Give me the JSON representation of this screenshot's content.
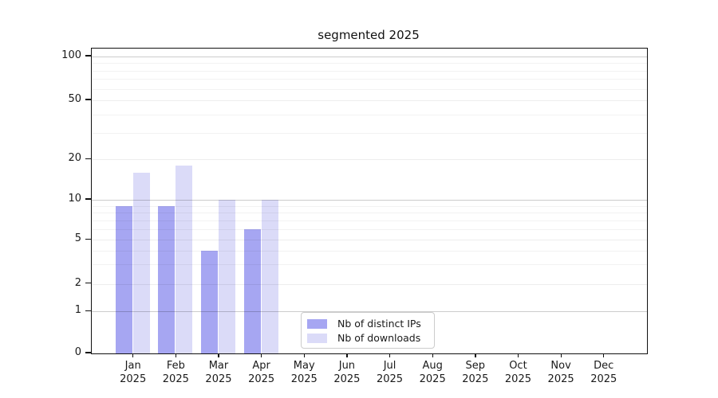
{
  "figure": {
    "title": "segmented 2025"
  },
  "chart_data": {
    "type": "bar",
    "title": "segmented 2025",
    "categories": [
      "Jan 2025",
      "Feb 2025",
      "Mar 2025",
      "Apr 2025",
      "May 2025",
      "Jun 2025",
      "Jul 2025",
      "Aug 2025",
      "Sep 2025",
      "Oct 2025",
      "Nov 2025",
      "Dec 2025"
    ],
    "series": [
      {
        "name": "Nb of distinct IPs",
        "color": "#a6a6f2",
        "values": [
          9,
          9,
          4,
          6,
          null,
          null,
          null,
          null,
          null,
          null,
          null,
          null
        ]
      },
      {
        "name": "Nb of downloads",
        "color": "#dbdbf8",
        "values": [
          16,
          18,
          10,
          10,
          null,
          null,
          null,
          null,
          null,
          null,
          null,
          null
        ]
      }
    ],
    "y_axis": {
      "tick_labels": [
        "0",
        "1",
        "2",
        "5",
        "10",
        "20",
        "50",
        "100"
      ],
      "tick_values": [
        0,
        1,
        2,
        5,
        10,
        20,
        50,
        100
      ],
      "minor_gridline_values": [
        3,
        4,
        6,
        7,
        8,
        9,
        30,
        40,
        60,
        70,
        80,
        90
      ],
      "scale": "segmented: linear 0-1, log-like 1-100"
    },
    "x_axis": {
      "year_line": "2025"
    },
    "legend_position": "bottom-center",
    "grid": "horizontal",
    "layout": {
      "y_scale_anchors": {
        "values": [
          0,
          1,
          2,
          5,
          10,
          20,
          50,
          100
        ],
        "fracs": [
          0,
          0.1372,
          0.2278,
          0.3726,
          0.5043,
          0.6366,
          0.8304,
          0.9739
        ]
      }
    }
  }
}
